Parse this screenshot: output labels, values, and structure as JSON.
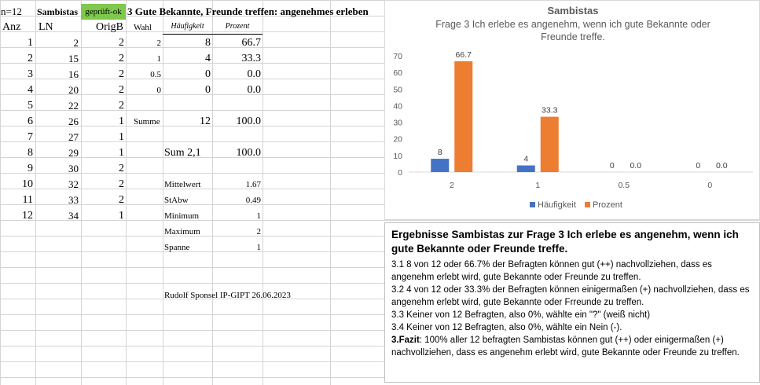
{
  "sheet": {
    "header": {
      "n": "n=12",
      "group": "Sambistas",
      "status": "geprüft-ok",
      "question": "3 Gute Bekannte, Freunde treffen: angenehmes erleben"
    },
    "columns": {
      "anz": "Anz",
      "ln": "LN",
      "origb": "OrigB",
      "wahl": "Wahl",
      "haeufigkeit": "Häufigkeit",
      "prozent": "Prozent"
    },
    "rows": [
      {
        "anz": "1",
        "ln": "2",
        "origb": "2"
      },
      {
        "anz": "2",
        "ln": "15",
        "origb": "2"
      },
      {
        "anz": "3",
        "ln": "16",
        "origb": "2"
      },
      {
        "anz": "4",
        "ln": "20",
        "origb": "2"
      },
      {
        "anz": "5",
        "ln": "22",
        "origb": "2"
      },
      {
        "anz": "6",
        "ln": "26",
        "origb": "1"
      },
      {
        "anz": "7",
        "ln": "27",
        "origb": "1"
      },
      {
        "anz": "8",
        "ln": "29",
        "origb": "1"
      },
      {
        "anz": "9",
        "ln": "30",
        "origb": "2"
      },
      {
        "anz": "10",
        "ln": "32",
        "origb": "2"
      },
      {
        "anz": "11",
        "ln": "33",
        "origb": "2"
      },
      {
        "anz": "12",
        "ln": "34",
        "origb": "1"
      }
    ],
    "freq": [
      {
        "wahl": "2",
        "haeufigkeit": "8",
        "prozent": "66.7"
      },
      {
        "wahl": "1",
        "haeufigkeit": "4",
        "prozent": "33.3"
      },
      {
        "wahl": "0.5",
        "haeufigkeit": "0",
        "prozent": "0.0"
      },
      {
        "wahl": "0",
        "haeufigkeit": "0",
        "prozent": "0.0"
      }
    ],
    "summe": {
      "label": "Summe",
      "haeufigkeit": "12",
      "prozent": "100.0"
    },
    "sum21": {
      "label": "Sum 2,1",
      "prozent": "100.0"
    },
    "stats": [
      {
        "label": "Mittelwert",
        "value": "1.67"
      },
      {
        "label": "StAbw",
        "value": "0.49"
      },
      {
        "label": "Minimum",
        "value": "1"
      },
      {
        "label": "Maximum",
        "value": "2"
      },
      {
        "label": "Spanne",
        "value": "1"
      }
    ],
    "author": "Rudolf Sponsel IP-GIPT 26.06.2023"
  },
  "chart_data": {
    "type": "bar",
    "title": "Sambistas",
    "subtitle_lines": [
      "Frage 3 Ich erlebe es angenehm, wenn ich gute Bekannte oder",
      "Freunde treffe."
    ],
    "categories": [
      "2",
      "1",
      "0.5",
      "0"
    ],
    "series": [
      {
        "name": "Häufigkeit",
        "color": "#4472c4",
        "values": [
          8,
          4,
          0,
          0
        ],
        "labels": [
          "8",
          "4",
          "0",
          "0"
        ]
      },
      {
        "name": "Prozent",
        "color": "#ed7d31",
        "values": [
          66.7,
          33.3,
          0,
          0
        ],
        "labels": [
          "66.7",
          "33.3",
          "0.0",
          "0.0"
        ]
      }
    ],
    "ylim": [
      0,
      70
    ],
    "yticks": [
      "0",
      "10",
      "20",
      "30",
      "40",
      "50",
      "60",
      "70"
    ],
    "grid": false,
    "legend_position": "bottom"
  },
  "textbox": {
    "title": "Ergebnisse Sambistas zur Frage 3 Ich erlebe es angenehm, wenn ich gute Bekannte oder Freunde treffe.",
    "lines": [
      "3.1   8 von 12 oder 66.7% der Befragten können gut (++) nachvollziehen, dass es angenehm erlebt wird, gute Bekannte oder Freunde zu treffen.",
      "3.2   4 von 12 oder 33.3% der Befragten können einigermaßen (+) nachvollziehen, dass es angenehm erlebt wird, gute Bekannte oder Frreunde zu treffen.",
      "3.3  Keiner von 12 Befragten, also 0%, wählte ein \"?\" (weiß nicht)",
      "3.4  Keiner von 12 Befragten, also 0%, wählte ein Nein (-)."
    ],
    "fazit_label": "3.Fazit",
    "fazit_text": ": 100% aller 12 befragten Sambistas können gut (++) oder einigermaßen (+) nachvollziehen, dass es angenehm erlebt wird, gute Bekannte oder Freunde zu treffen."
  }
}
